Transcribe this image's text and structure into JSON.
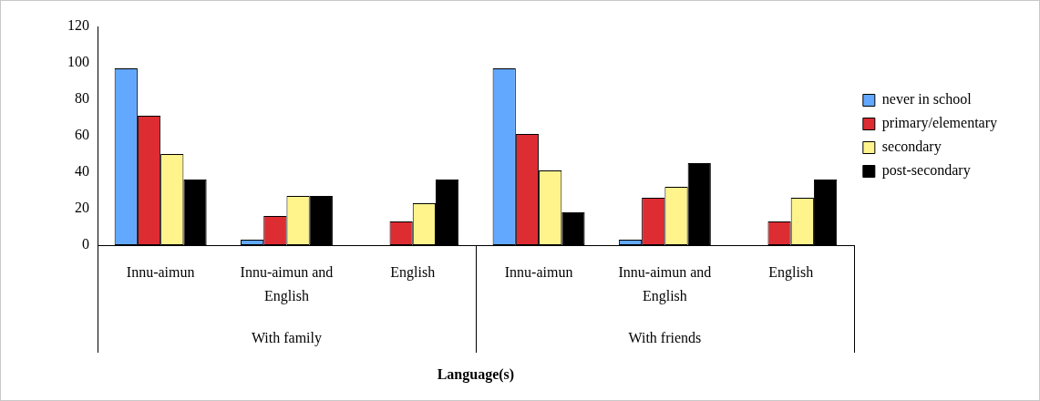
{
  "chart_data": {
    "type": "bar",
    "xlabel": "Language(s)",
    "categories": [
      "Innu-aimun",
      "Innu-aimun and English",
      "English",
      "Innu-aimun",
      "Innu-aimun and English",
      "English"
    ],
    "annotations": [
      "With family",
      "With friends"
    ],
    "series": [
      {
        "name": "never in school",
        "color": "#62a8ff",
        "values": [
          97,
          3,
          null,
          97,
          3,
          null
        ]
      },
      {
        "name": "primary/elementary",
        "color": "#de2c33",
        "values": [
          71,
          16,
          13,
          61,
          26,
          13
        ]
      },
      {
        "name": "secondary",
        "color": "#fff48c",
        "values": [
          50,
          27,
          23,
          41,
          32,
          26
        ]
      },
      {
        "name": "post-secondary",
        "color": "#000000",
        "values": [
          36,
          27,
          36,
          18,
          45,
          36
        ]
      }
    ],
    "ylim": [
      0,
      120
    ],
    "yticks": [
      0,
      20,
      40,
      60,
      80,
      100,
      120
    ],
    "grid": false,
    "legend": "right"
  }
}
